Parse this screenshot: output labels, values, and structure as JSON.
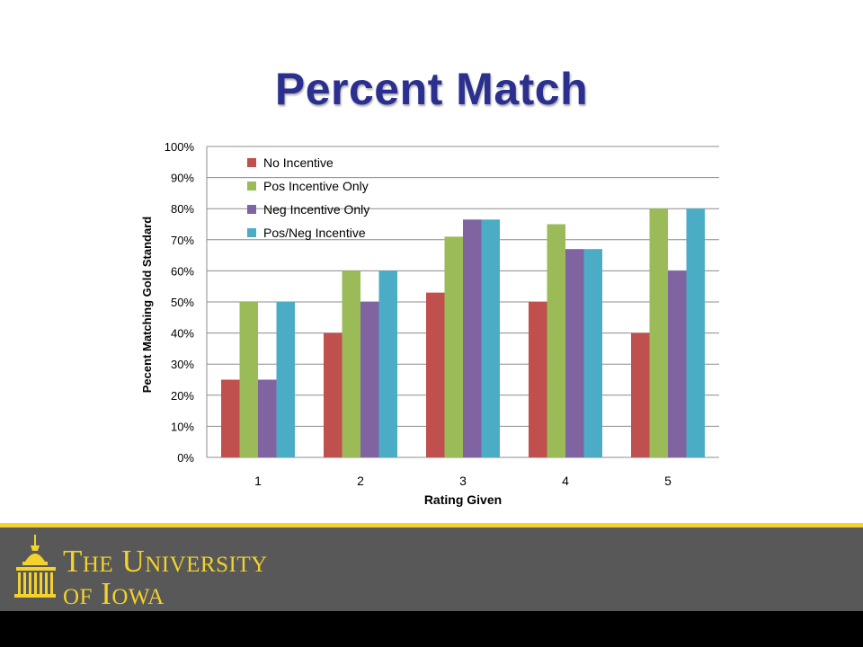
{
  "slide": {
    "title": "Percent Match"
  },
  "footer": {
    "line1": "The University",
    "line2": "of Iowa"
  },
  "colors": {
    "title": "#2b2f8f",
    "gold": "#f3d22b",
    "footer_gray": "#585858"
  },
  "chart_data": {
    "type": "bar",
    "xlabel": "Rating Given",
    "ylabel": "Pecent Matching Gold Standard",
    "categories": [
      "1",
      "2",
      "3",
      "4",
      "5"
    ],
    "ylim": [
      0,
      100
    ],
    "yticks": [
      "0%",
      "10%",
      "20%",
      "30%",
      "40%",
      "50%",
      "60%",
      "70%",
      "80%",
      "90%",
      "100%"
    ],
    "grid": true,
    "legend_position": "top-left",
    "series": [
      {
        "name": "No Incentive",
        "color": "#c0504d",
        "values": [
          25,
          40,
          53,
          50,
          40
        ]
      },
      {
        "name": "Pos Incentive Only",
        "color": "#9bbb59",
        "values": [
          50,
          60,
          71,
          75,
          80
        ]
      },
      {
        "name": "Neg Incentive Only",
        "color": "#8064a2",
        "values": [
          25,
          50,
          76.5,
          67,
          60
        ]
      },
      {
        "name": "Pos/Neg Incentive",
        "color": "#4bacc6",
        "values": [
          50,
          60,
          76.5,
          67,
          80
        ]
      }
    ]
  }
}
